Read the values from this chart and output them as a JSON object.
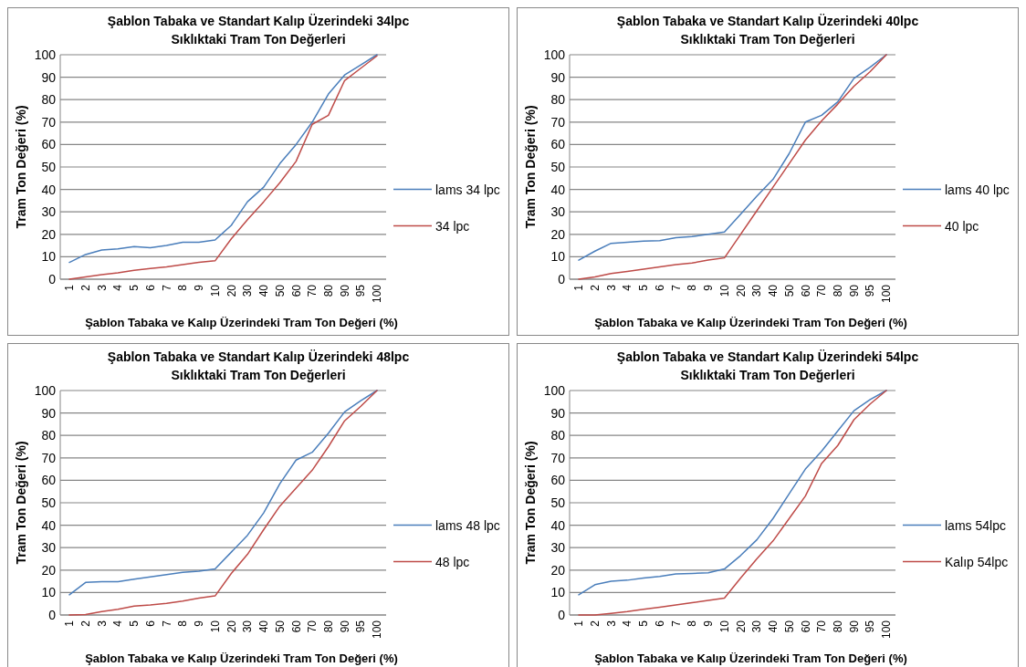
{
  "chart_data": [
    {
      "type": "line",
      "title": "Şablon Tabaka ve Standart Kalıp Üzerindeki 34lpc",
      "subtitle": "Sıklıktaki Tram Ton Değerleri",
      "xlabel": "Şablon Tabaka ve Kalıp Üzerindeki Tram Ton Değeri (%)",
      "ylabel": "Tram Ton Değeri (%)",
      "categories": [
        "1",
        "2",
        "3",
        "4",
        "5",
        "6",
        "7",
        "8",
        "9",
        "10",
        "20",
        "30",
        "40",
        "50",
        "60",
        "70",
        "80",
        "90",
        "95",
        "100"
      ],
      "ylim": [
        0,
        100
      ],
      "yticks": [
        0,
        10,
        20,
        30,
        40,
        50,
        60,
        70,
        80,
        90,
        100
      ],
      "grid": "y",
      "legend": "right",
      "series": [
        {
          "name": "lams 34 lpc",
          "color": "#4a7ebb",
          "values": [
            7.5,
            11,
            13,
            13.5,
            14.5,
            14,
            15,
            16.5,
            16.5,
            17.5,
            24,
            34.5,
            41,
            51.5,
            60,
            70,
            82.5,
            91,
            95.5,
            100
          ]
        },
        {
          "name": "34 lpc",
          "color": "#be4b48",
          "values": [
            0,
            1,
            2,
            2.8,
            4,
            4.8,
            5.5,
            6.5,
            7.5,
            8.2,
            18,
            26.5,
            34.5,
            43,
            52.5,
            69,
            73,
            88.5,
            94,
            99.5
          ]
        }
      ]
    },
    {
      "type": "line",
      "title": "Şablon Tabaka ve Standart Kalıp Üzerindeki 40lpc",
      "subtitle": "Sıklıktaki Tram Ton Değerleri",
      "xlabel": "Şablon Tabaka ve Kalıp Üzerindeki Tram Ton Değeri (%)",
      "ylabel": "Tram Ton Değeri (%)",
      "categories": [
        "1",
        "2",
        "3",
        "4",
        "5",
        "6",
        "7",
        "8",
        "9",
        "10",
        "20",
        "30",
        "40",
        "50",
        "60",
        "70",
        "80",
        "90",
        "95",
        "100"
      ],
      "ylim": [
        0,
        100
      ],
      "yticks": [
        0,
        10,
        20,
        30,
        40,
        50,
        60,
        70,
        80,
        90,
        100
      ],
      "grid": "y",
      "legend": "right",
      "series": [
        {
          "name": "lams 40 lpc",
          "color": "#4a7ebb",
          "values": [
            8.5,
            12.5,
            16,
            16.5,
            17,
            17.2,
            18.5,
            19,
            20,
            21,
            29,
            37,
            44.5,
            56,
            70,
            73,
            79,
            89.5,
            94.5,
            100
          ]
        },
        {
          "name": "40 lpc",
          "color": "#be4b48",
          "values": [
            0,
            1,
            2.5,
            3.5,
            4.5,
            5.5,
            6.5,
            7.2,
            8.5,
            9.5,
            20,
            30.5,
            41,
            51.5,
            62,
            70.5,
            78,
            86,
            92.5,
            100
          ]
        }
      ]
    },
    {
      "type": "line",
      "title": "Şablon Tabaka ve Standart Kalıp Üzerindeki 48lpc",
      "subtitle": "Sıklıktaki Tram Ton Değerleri",
      "xlabel": "Şablon Tabaka ve Kalıp Üzerindeki Tram Ton Değeri (%)",
      "ylabel": "Tram Ton Değeri (%)",
      "categories": [
        "1",
        "2",
        "3",
        "4",
        "5",
        "6",
        "7",
        "8",
        "9",
        "10",
        "20",
        "30",
        "40",
        "50",
        "60",
        "70",
        "80",
        "90",
        "95",
        "100"
      ],
      "ylim": [
        0,
        100
      ],
      "yticks": [
        0,
        10,
        20,
        30,
        40,
        50,
        60,
        70,
        80,
        90,
        100
      ],
      "grid": "y",
      "legend": "right",
      "series": [
        {
          "name": "lams 48 lpc",
          "color": "#4a7ebb",
          "values": [
            9,
            14.5,
            14.8,
            14.8,
            16,
            17,
            18,
            19,
            19.5,
            20.5,
            28,
            35.5,
            45.5,
            58.5,
            69,
            72.5,
            81,
            90.5,
            95.5,
            100
          ]
        },
        {
          "name": "48 lpc",
          "color": "#be4b48",
          "values": [
            0,
            0.2,
            1.5,
            2.5,
            4,
            4.5,
            5.2,
            6.2,
            7.5,
            8.5,
            18.5,
            27,
            38,
            48.5,
            56.5,
            64.5,
            75,
            86.5,
            93,
            100
          ]
        }
      ]
    },
    {
      "type": "line",
      "title": "Şablon Tabaka ve Standart Kalıp Üzerindeki 54lpc",
      "subtitle": "Sıklıktaki Tram Ton Değerleri",
      "xlabel": "Şablon Tabaka ve Kalıp Üzerindeki Tram Ton Değeri (%)",
      "ylabel": "Tram Ton Değeri (%)",
      "categories": [
        "1",
        "2",
        "3",
        "4",
        "5",
        "6",
        "7",
        "8",
        "9",
        "10",
        "20",
        "30",
        "40",
        "50",
        "60",
        "70",
        "80",
        "90",
        "95",
        "100"
      ],
      "ylim": [
        0,
        100
      ],
      "yticks": [
        0,
        10,
        20,
        30,
        40,
        50,
        60,
        70,
        80,
        90,
        100
      ],
      "grid": "y",
      "legend": "right",
      "series": [
        {
          "name": "lams 54lpc",
          "color": "#4a7ebb",
          "values": [
            9,
            13.5,
            15,
            15.5,
            16.5,
            17.2,
            18.3,
            18.5,
            18.8,
            20.5,
            26.5,
            33.5,
            43,
            54,
            65,
            73,
            82,
            91,
            96,
            100
          ]
        },
        {
          "name": "Kalıp 54lpc",
          "color": "#be4b48",
          "values": [
            0,
            0,
            0.7,
            1.5,
            2.5,
            3.5,
            4.5,
            5.5,
            6.5,
            7.5,
            16.5,
            25,
            33,
            43,
            53,
            67.5,
            75.5,
            87,
            94,
            100
          ]
        }
      ]
    }
  ]
}
